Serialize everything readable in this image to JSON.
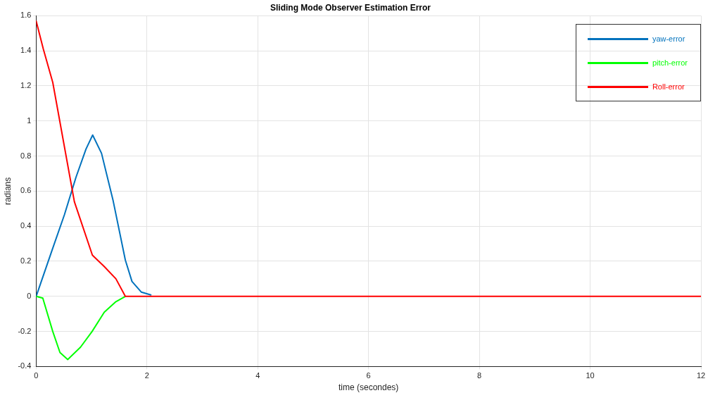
{
  "chart_data": {
    "type": "line",
    "title": "Sliding Mode Observer Estimation Error",
    "xlabel": "time (secondes)",
    "ylabel": "radians",
    "series": [
      {
        "name": "yaw-error",
        "color": "#0072bd",
        "x": [
          0,
          0.3,
          0.51,
          0.72,
          0.9,
          1.02,
          1.18,
          1.39,
          1.61,
          1.73,
          1.9,
          2.07
        ],
        "values": [
          0,
          0.275,
          0.465,
          0.68,
          0.84,
          0.92,
          0.816,
          0.545,
          0.207,
          0.085,
          0.024,
          0.008
        ]
      },
      {
        "name": "pitch-error",
        "color": "#00ff00",
        "x": [
          0,
          0.12,
          0.3,
          0.43,
          0.57,
          0.8,
          1.01,
          1.23,
          1.44,
          1.61
        ],
        "values": [
          0,
          -0.01,
          -0.2,
          -0.32,
          -0.36,
          -0.29,
          -0.2,
          -0.09,
          -0.03,
          0
        ],
        "line_style": "solid"
      },
      {
        "name": "Roll-error",
        "color": "#ff0000",
        "x": [
          0,
          0.13,
          0.3,
          0.69,
          1.015,
          1.23,
          1.44,
          1.61,
          2,
          4,
          6,
          8,
          10,
          12
        ],
        "values": [
          1.57,
          1.41,
          1.22,
          0.54,
          0.235,
          0.17,
          0.1,
          0,
          0,
          0,
          0,
          0,
          0,
          0
        ]
      }
    ],
    "xlim": [
      0,
      12
    ],
    "xticks": [
      0,
      2,
      4,
      6,
      8,
      10,
      12
    ],
    "ylim": [
      -0.4,
      1.6
    ],
    "yticks": [
      -0.4,
      -0.2,
      0,
      0.2,
      0.4,
      0.6,
      0.8,
      1,
      1.2,
      1.4,
      1.6
    ],
    "grid": true,
    "legend": "top right",
    "marker": "none",
    "line_style": "solid"
  }
}
